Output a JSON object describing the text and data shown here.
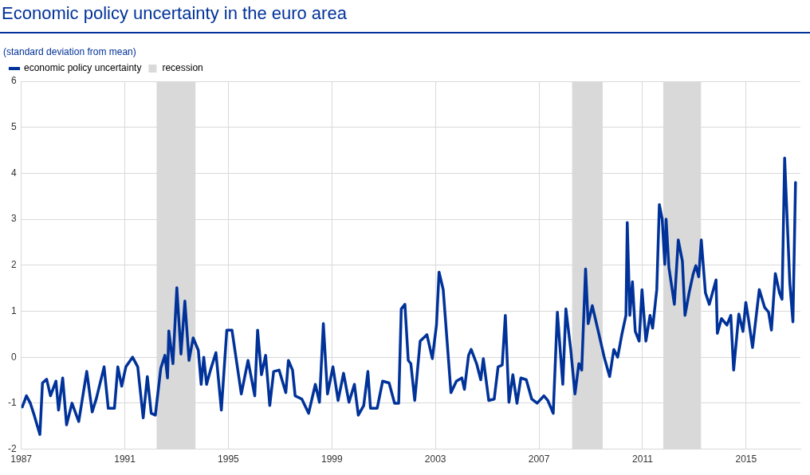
{
  "chart_data": {
    "type": "line",
    "title": "Economic policy uncertainty in the euro area",
    "subtitle": "(standard deviation from mean)",
    "x": [
      1987.04,
      1987.2,
      1987.35,
      1987.5,
      1987.72,
      1987.82,
      1987.98,
      1988.13,
      1988.34,
      1988.44,
      1988.6,
      1988.75,
      1988.96,
      1989.22,
      1989.53,
      1989.74,
      1989.9,
      1990.2,
      1990.36,
      1990.6,
      1990.73,
      1990.88,
      1991.04,
      1991.3,
      1991.5,
      1991.71,
      1991.87,
      1992.02,
      1992.18,
      1992.39,
      1992.55,
      1992.65,
      1992.7,
      1992.86,
      1993.01,
      1993.17,
      1993.32,
      1993.48,
      1993.64,
      1993.84,
      1993.95,
      1994.05,
      1994.16,
      1994.31,
      1994.52,
      1994.73,
      1994.94,
      1995.14,
      1995.5,
      1995.76,
      1996.02,
      1996.13,
      1996.28,
      1996.44,
      1996.6,
      1996.75,
      1996.96,
      1997.22,
      1997.32,
      1997.48,
      1997.58,
      1997.84,
      1998.1,
      1998.36,
      1998.52,
      1998.67,
      1998.83,
      1999.04,
      1999.24,
      1999.45,
      1999.66,
      1999.87,
      2000.02,
      2000.23,
      2000.39,
      2000.49,
      2000.75,
      2000.96,
      2001.21,
      2001.42,
      2001.58,
      2001.68,
      2001.82,
      2001.95,
      2002.05,
      2002.2,
      2002.41,
      2002.67,
      2002.88,
      2003.04,
      2003.14,
      2003.3,
      2003.45,
      2003.6,
      2003.81,
      2004.02,
      2004.12,
      2004.28,
      2004.38,
      2004.59,
      2004.75,
      2004.85,
      2005.06,
      2005.27,
      2005.42,
      2005.58,
      2005.7,
      2005.84,
      2005.99,
      2006.15,
      2006.3,
      2006.51,
      2006.72,
      2006.93,
      2007.19,
      2007.34,
      2007.55,
      2007.71,
      2007.92,
      2008.04,
      2008.23,
      2008.39,
      2008.54,
      2008.65,
      2008.8,
      2008.9,
      2009.06,
      2009.32,
      2009.52,
      2009.73,
      2009.89,
      2010.04,
      2010.2,
      2010.36,
      2010.41,
      2010.51,
      2010.61,
      2010.72,
      2010.87,
      2010.98,
      2011.13,
      2011.29,
      2011.39,
      2011.55,
      2011.65,
      2011.76,
      2011.86,
      2011.91,
      2012.02,
      2012.23,
      2012.38,
      2012.54,
      2012.64,
      2012.8,
      2012.96,
      2013.06,
      2013.17,
      2013.27,
      2013.43,
      2013.58,
      2013.84,
      2013.89,
      2014.05,
      2014.26,
      2014.41,
      2014.52,
      2014.72,
      2014.88,
      2014.99,
      2015.09,
      2015.25,
      2015.51,
      2015.72,
      2015.87,
      2015.98,
      2016.13,
      2016.29,
      2016.39,
      2016.49,
      2016.69,
      2016.81,
      2016.91
    ],
    "series": [
      {
        "name": "economic policy uncertainty",
        "color": "#003299",
        "values": [
          -1.08,
          -0.84,
          -1.0,
          -1.26,
          -1.68,
          -0.56,
          -0.48,
          -0.84,
          -0.52,
          -1.15,
          -0.45,
          -1.47,
          -1.0,
          -1.4,
          -0.31,
          -1.19,
          -0.9,
          -0.21,
          -1.11,
          -1.11,
          -0.21,
          -0.63,
          -0.21,
          0.0,
          -0.21,
          -1.32,
          -0.42,
          -1.22,
          -1.26,
          -0.24,
          0.04,
          -0.45,
          0.57,
          -0.14,
          1.51,
          0.07,
          1.22,
          -0.07,
          0.42,
          0.15,
          -0.59,
          0.0,
          -0.59,
          -0.28,
          0.1,
          -1.15,
          0.59,
          0.59,
          -0.8,
          -0.07,
          -0.84,
          0.59,
          -0.38,
          0.04,
          -1.05,
          -0.31,
          -0.28,
          -0.77,
          -0.07,
          -0.28,
          -0.84,
          -0.91,
          -1.22,
          -0.59,
          -0.98,
          0.73,
          -0.8,
          -0.21,
          -0.94,
          -0.35,
          -0.98,
          -0.59,
          -1.26,
          -1.05,
          -0.31,
          -1.11,
          -1.11,
          -0.52,
          -0.56,
          -1.0,
          -1.0,
          1.05,
          1.15,
          -0.07,
          -0.14,
          -0.94,
          0.35,
          0.49,
          -0.03,
          0.7,
          1.85,
          1.47,
          0.35,
          -0.77,
          -0.52,
          -0.45,
          -0.7,
          0.04,
          0.17,
          -0.14,
          -0.49,
          -0.03,
          -0.94,
          -0.91,
          -0.21,
          -0.17,
          0.91,
          -0.98,
          -0.38,
          -1.0,
          -0.45,
          -0.49,
          -0.91,
          -1.0,
          -0.84,
          -0.94,
          -1.22,
          0.98,
          -0.59,
          1.05,
          0.15,
          -0.8,
          -0.14,
          -0.28,
          1.92,
          0.73,
          1.12,
          0.49,
          0.0,
          -0.42,
          0.17,
          0.0,
          0.49,
          0.91,
          2.93,
          0.91,
          1.64,
          0.56,
          0.35,
          1.47,
          0.35,
          0.91,
          0.63,
          1.47,
          3.32,
          3.0,
          2.02,
          3.0,
          1.95,
          1.15,
          2.55,
          2.09,
          0.91,
          1.4,
          1.82,
          1.99,
          1.75,
          2.55,
          1.4,
          1.15,
          1.68,
          0.52,
          0.84,
          0.7,
          0.91,
          -0.28,
          0.94,
          0.56,
          1.19,
          0.84,
          0.21,
          1.47,
          1.08,
          0.98,
          0.59,
          1.82,
          1.4,
          1.26,
          4.33,
          1.61,
          0.77,
          3.8
        ]
      }
    ],
    "xlim": [
      1987,
      2017.1
    ],
    "xticks": [
      1987,
      1991,
      1995,
      1999,
      2003,
      2007,
      2011,
      2015
    ],
    "ylim": [
      -2,
      6
    ],
    "yticks": [
      -2,
      -1,
      0,
      1,
      2,
      3,
      4,
      5,
      6
    ],
    "bands": [
      {
        "axis": "x",
        "from": 1992.23,
        "to": 1993.73,
        "label": "recession",
        "color": "#d9d9d9"
      },
      {
        "axis": "x",
        "from": 2008.28,
        "to": 2009.46,
        "color": "#d9d9d9"
      },
      {
        "axis": "x",
        "from": 2011.8,
        "to": 2013.26,
        "color": "#d9d9d9"
      }
    ],
    "grid": true,
    "legend": "top left",
    "marker": "none",
    "line_style": "solid"
  }
}
